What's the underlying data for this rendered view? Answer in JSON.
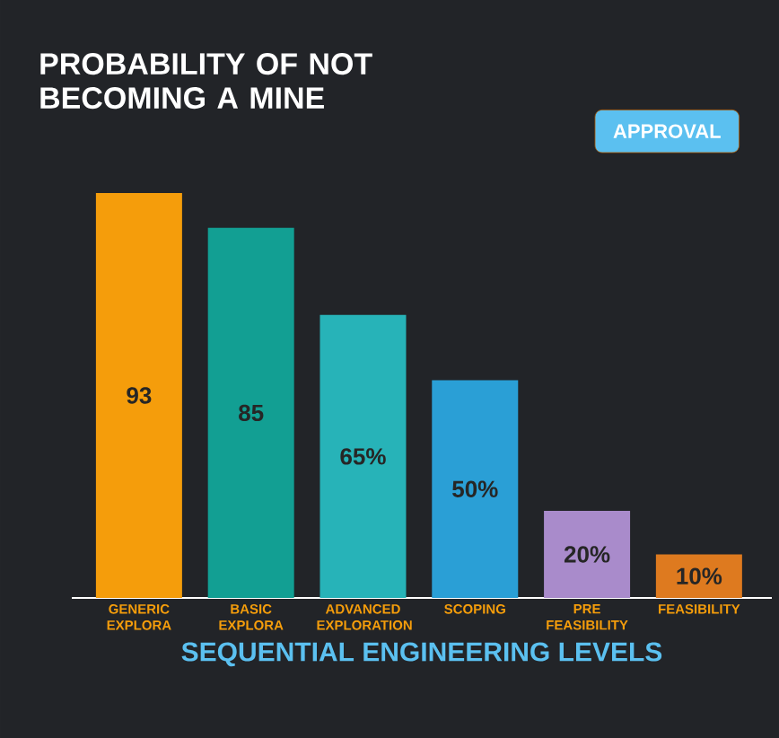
{
  "chart_data": {
    "type": "bar",
    "title": "PROBABILITY OF NOT BECOMING A MINE",
    "xlabel": "SEQUENTIAL ENGINEERING LEVELS",
    "categories": [
      "GENERIC EXPLORA",
      "BASIC EXPLORA",
      "ADVANCED EXPLORATION",
      "SCOPING",
      "PRE FEASIBILITY",
      "FEASIBILITY"
    ],
    "values": [
      93,
      85,
      65,
      50,
      20,
      10
    ],
    "value_labels": [
      "93",
      "85",
      "65%",
      "50%",
      "20%",
      "10%"
    ],
    "colors": [
      "#f59d0b",
      "#129f93",
      "#27b3b8",
      "#2a9fd6",
      "#a98bcb",
      "#de7a1f"
    ],
    "annotations": [
      "APPROVAL"
    ]
  }
}
